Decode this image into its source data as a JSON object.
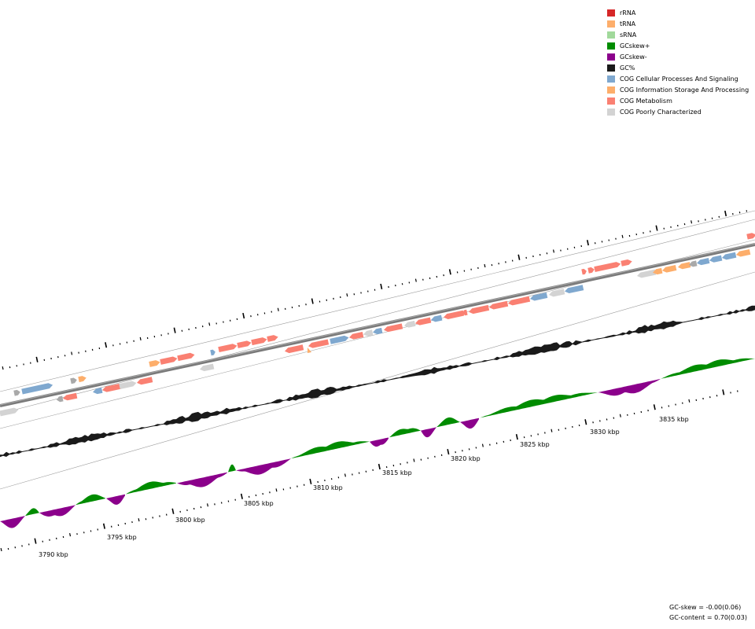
{
  "legend": {
    "items": [
      {
        "label": "rRNA",
        "color": "#d62728"
      },
      {
        "label": "tRNA",
        "color": "#fdae6b"
      },
      {
        "label": "sRNA",
        "color": "#a1d99b"
      },
      {
        "label": "GCskew+",
        "color": "#008c00"
      },
      {
        "label": "GCskew-",
        "color": "#8b008b"
      },
      {
        "label": "GC%",
        "color": "#1a1a1a"
      },
      {
        "label": "COG Cellular Processes And Signaling",
        "color": "#7fa8cf"
      },
      {
        "label": "COG Information Storage And Processing",
        "color": "#fdae6b"
      },
      {
        "label": "COG Metabolism",
        "color": "#fa8072"
      },
      {
        "label": "COG Poorly Characterized",
        "color": "#d3d3d3"
      }
    ]
  },
  "axis": {
    "labels": [
      "3790 kbp",
      "3795 kbp",
      "3800 kbp",
      "3805 kbp",
      "3810 kbp",
      "3815 kbp",
      "3820 kbp",
      "3825 kbp",
      "3830 kbp",
      "3835 kbp"
    ]
  },
  "stats": {
    "gc_skew": "GC-skew = -0.00(0.06)",
    "gc_content": "GC-content = 0.70(0.03)"
  }
}
